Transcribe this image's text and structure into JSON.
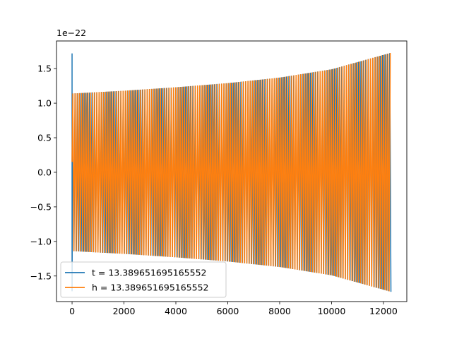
{
  "chart_data": {
    "type": "line",
    "title": "",
    "xlabel": "",
    "ylabel": "",
    "y_offset_label": "1e−22",
    "xlim": [
      -600,
      12900
    ],
    "ylim": [
      -1.87,
      1.9
    ],
    "x_ticks": [
      0,
      2000,
      4000,
      6000,
      8000,
      10000,
      12000
    ],
    "x_tick_labels": [
      "0",
      "2000",
      "4000",
      "6000",
      "8000",
      "10000",
      "12000"
    ],
    "y_ticks": [
      -1.5,
      -1.0,
      -0.5,
      0.0,
      0.5,
      1.0,
      1.5
    ],
    "y_tick_labels": [
      "−1.5",
      "−1.0",
      "−0.5",
      "0.0",
      "0.5",
      "1.0",
      "1.5"
    ],
    "grid": false,
    "legend_position": "lower-left",
    "series": [
      {
        "name": "t = 13.389651695165552",
        "color": "#1f77b4",
        "x": [
          0,
          12300
        ],
        "envelope_start": [
          -1.72,
          1.72
        ],
        "envelope_upper": [
          [
            0,
            1.14
          ],
          [
            2000,
            1.18
          ],
          [
            4000,
            1.23
          ],
          [
            6000,
            1.29
          ],
          [
            8000,
            1.37
          ],
          [
            10000,
            1.49
          ],
          [
            12300,
            1.73
          ]
        ],
        "envelope_lower": [
          [
            0,
            -1.14
          ],
          [
            2000,
            -1.18
          ],
          [
            4000,
            -1.23
          ],
          [
            6000,
            -1.29
          ],
          [
            8000,
            -1.37
          ],
          [
            10000,
            -1.49
          ],
          [
            12300,
            -1.73
          ]
        ]
      },
      {
        "name": "h = 13.389651695165552",
        "color": "#ff7f0e",
        "x": [
          0,
          12300
        ],
        "envelope_upper": [
          [
            0,
            1.14
          ],
          [
            2000,
            1.18
          ],
          [
            4000,
            1.23
          ],
          [
            6000,
            1.29
          ],
          [
            8000,
            1.37
          ],
          [
            10000,
            1.49
          ],
          [
            12300,
            1.73
          ]
        ],
        "envelope_lower": [
          [
            0,
            -1.14
          ],
          [
            2000,
            -1.18
          ],
          [
            4000,
            -1.23
          ],
          [
            6000,
            -1.29
          ],
          [
            8000,
            -1.37
          ],
          [
            10000,
            -1.49
          ],
          [
            12300,
            -1.73
          ]
        ]
      }
    ]
  }
}
